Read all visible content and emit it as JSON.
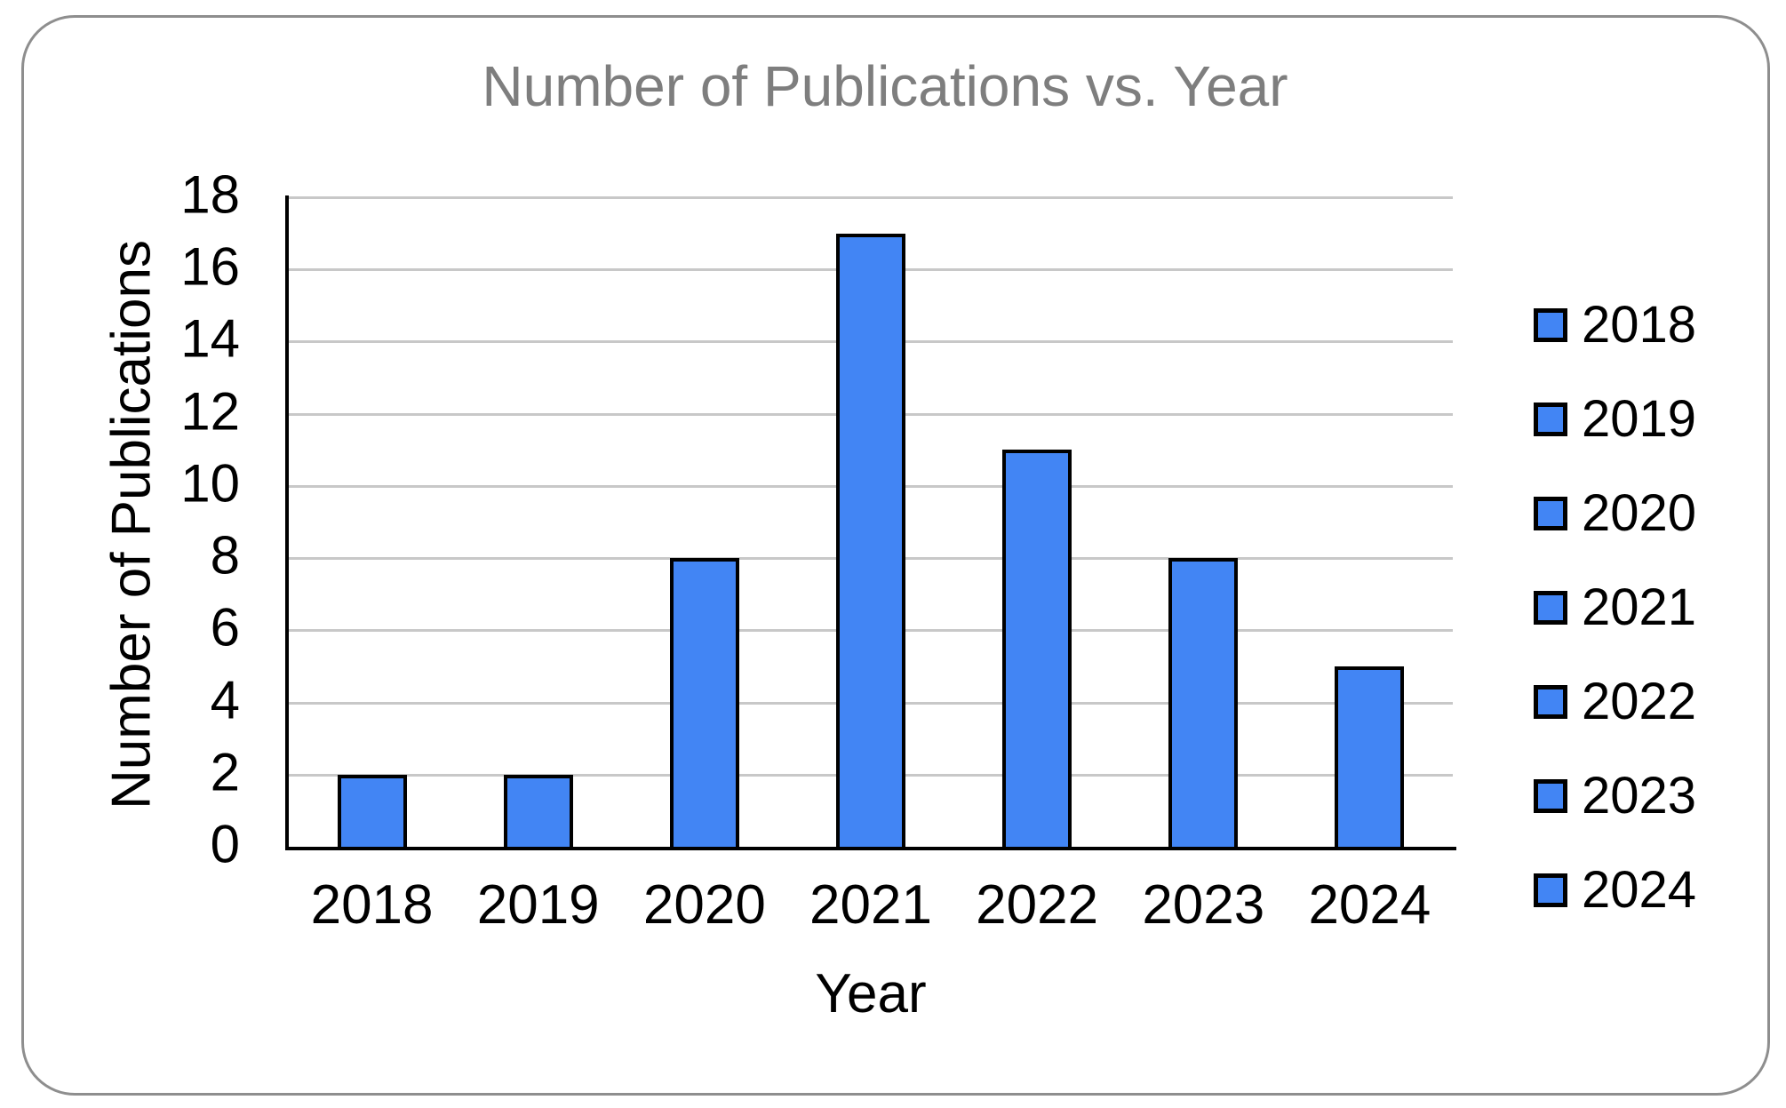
{
  "figure": {
    "frame_border_color": "#8e8e8e",
    "background_color": "#ffffff"
  },
  "chart_data": {
    "type": "bar",
    "title": "Number of Publications vs. Year",
    "xlabel": "Year",
    "ylabel": "Number of Publications",
    "categories": [
      "2018",
      "2019",
      "2020",
      "2021",
      "2022",
      "2023",
      "2024"
    ],
    "values": [
      2,
      2,
      8,
      17,
      11,
      8,
      5
    ],
    "ylim": [
      0,
      18
    ],
    "yticks": [
      0,
      2,
      4,
      6,
      8,
      10,
      12,
      14,
      16,
      18
    ],
    "grid": true,
    "legend": {
      "position": "right",
      "entries": [
        "2018",
        "2019",
        "2020",
        "2021",
        "2022",
        "2023",
        "2024"
      ]
    },
    "colors": {
      "bar_fill": "#4285F4",
      "bar_border": "#000000",
      "axis_line": "#000000",
      "gridline": "#c8c8c8",
      "title_text": "#7e7e7e",
      "tick_text": "#000000"
    }
  }
}
